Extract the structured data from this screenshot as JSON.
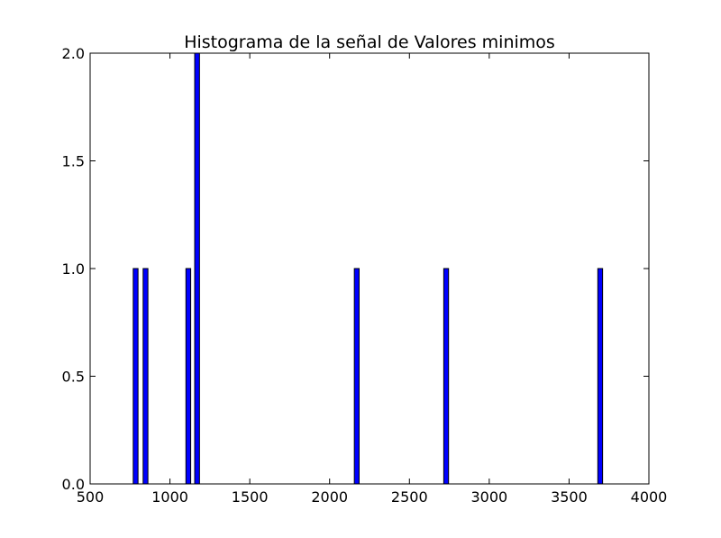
{
  "chart_data": {
    "type": "bar",
    "title": "Histograma de la señal de Valores minimos",
    "xlabel": "",
    "ylabel": "",
    "xlim": [
      500,
      4000
    ],
    "ylim": [
      0,
      2.0
    ],
    "x_ticks": [
      "500",
      "1000",
      "1500",
      "2000",
      "2500",
      "3000",
      "3500",
      "4000"
    ],
    "y_ticks": [
      "0.0",
      "0.5",
      "1.0",
      "1.5",
      "2.0"
    ],
    "grid": false,
    "bar_color": "#0000ff",
    "bars": [
      {
        "x_start": 770,
        "x_end": 800,
        "count": 1
      },
      {
        "x_start": 832,
        "x_end": 862,
        "count": 1
      },
      {
        "x_start": 1100,
        "x_end": 1130,
        "count": 1
      },
      {
        "x_start": 1155,
        "x_end": 1185,
        "count": 2
      },
      {
        "x_start": 2155,
        "x_end": 2185,
        "count": 1
      },
      {
        "x_start": 2715,
        "x_end": 2745,
        "count": 1
      },
      {
        "x_start": 3680,
        "x_end": 3710,
        "count": 1
      }
    ]
  }
}
